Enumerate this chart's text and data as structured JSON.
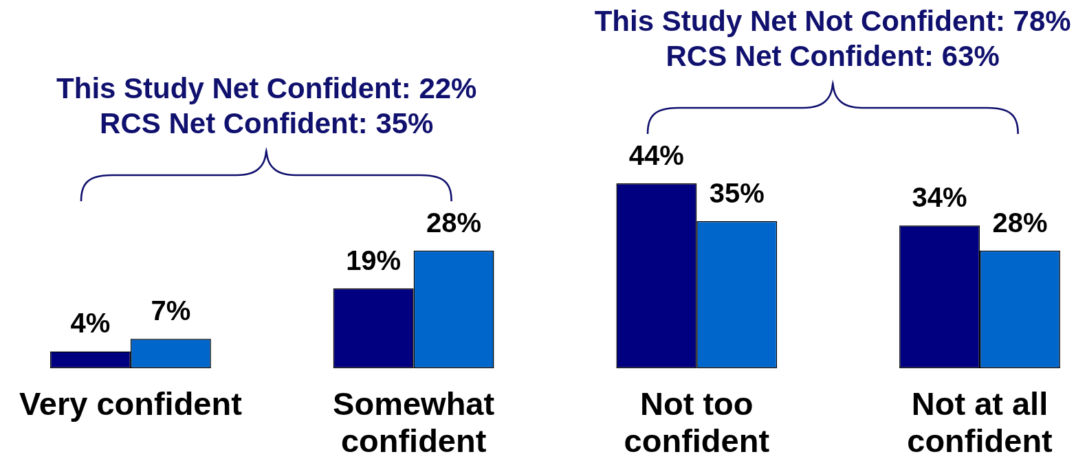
{
  "chart_data": {
    "type": "bar",
    "categories": [
      "Very confident",
      "Somewhat confident",
      "Not too confident",
      "Not at all confident"
    ],
    "series": [
      {
        "color": "#000080",
        "values": [
          4,
          19,
          44,
          34
        ],
        "value_labels": [
          "4%",
          "19%",
          "44%",
          "34%"
        ]
      },
      {
        "color": "#0066cc",
        "values": [
          7,
          28,
          35,
          28
        ],
        "value_labels": [
          "7%",
          "28%",
          "35%",
          "28%"
        ]
      }
    ],
    "annotations": [
      "This Study Net Confident: 22%\nRCS Net Confident: 35%",
      "This Study Net Not Confident: 78%\nRCS Net Confident: 63%"
    ]
  }
}
